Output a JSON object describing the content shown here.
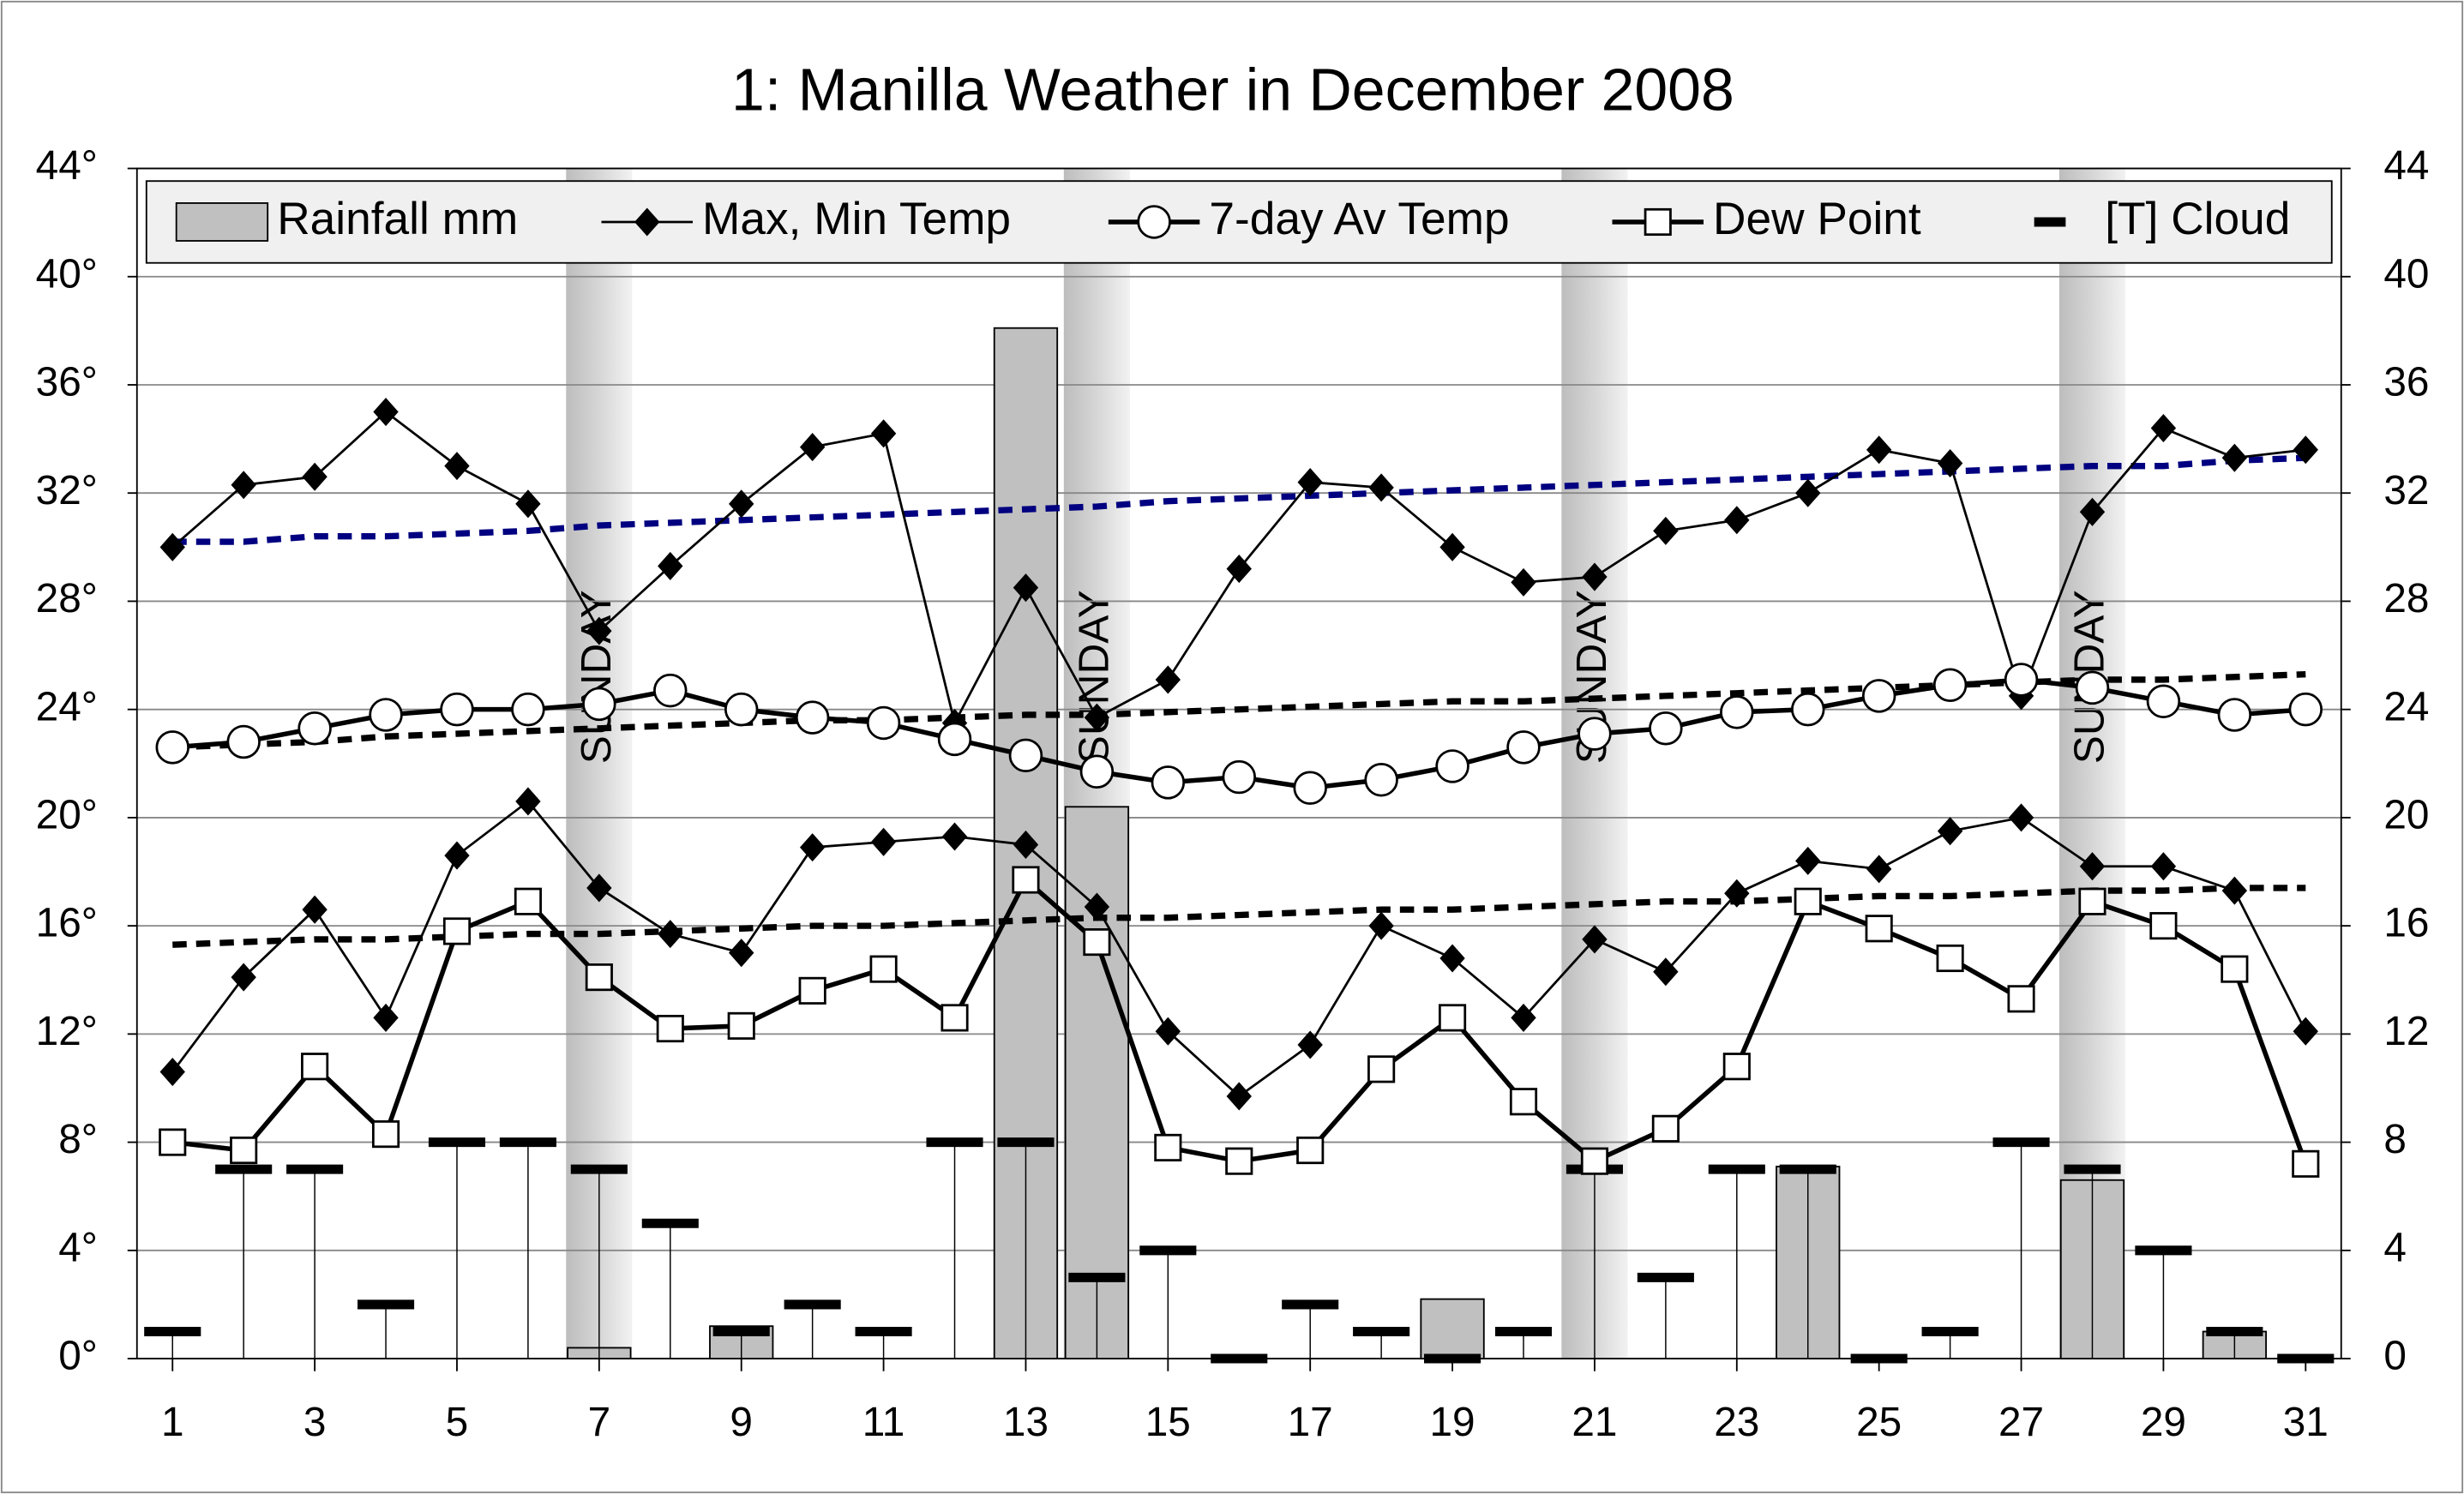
{
  "chart_data": {
    "type": "combo",
    "title": "1: Manilla Weather in December 2008",
    "x": [
      1,
      2,
      3,
      4,
      5,
      6,
      7,
      8,
      9,
      10,
      11,
      12,
      13,
      14,
      15,
      16,
      17,
      18,
      19,
      20,
      21,
      22,
      23,
      24,
      25,
      26,
      27,
      28,
      29,
      30,
      31
    ],
    "xlim": [
      0.5,
      31.5
    ],
    "xticks": [
      1,
      3,
      5,
      7,
      9,
      11,
      13,
      15,
      17,
      19,
      21,
      23,
      25,
      27,
      29,
      31
    ],
    "ylim": [
      0,
      44
    ],
    "yticks": [
      {
        "value": 0,
        "label": "0°"
      },
      {
        "value": 4,
        "label": "4°"
      },
      {
        "value": 8,
        "label": "8°"
      },
      {
        "value": 12,
        "label": "12°"
      },
      {
        "value": 16,
        "label": "16°"
      },
      {
        "value": 20,
        "label": "20°"
      },
      {
        "value": 24,
        "label": "24°"
      },
      {
        "value": 28,
        "label": "28°"
      },
      {
        "value": 32,
        "label": "32°"
      },
      {
        "value": 36,
        "label": "36°"
      },
      {
        "value": 40,
        "label": "40°"
      },
      {
        "value": 44,
        "label": "44°"
      }
    ],
    "y2lim": [
      0,
      44
    ],
    "y2ticks": [
      0,
      4,
      8,
      12,
      16,
      20,
      24,
      28,
      32,
      36,
      40,
      44
    ],
    "grid": true,
    "sundays": [
      7,
      14,
      21,
      28
    ],
    "sunday_label": "SUNDAY",
    "series": [
      {
        "name": "Rainfall mm",
        "kind": "bar",
        "color": "#c0c0c0",
        "values": [
          0,
          0,
          0,
          0,
          0,
          0,
          0.4,
          0,
          1.2,
          0,
          0,
          0,
          38.1,
          20.4,
          0,
          0,
          0,
          0,
          2.2,
          0,
          0,
          0,
          0,
          7.1,
          0,
          0,
          0,
          6.6,
          0,
          1,
          0
        ]
      },
      {
        "name": "Max, Min Temp",
        "kind": "line",
        "marker": "diamond",
        "color": "#000000",
        "values": [
          30,
          32.3,
          32.6,
          35,
          33,
          31.6,
          26.9,
          29.3,
          31.6,
          33.7,
          34.2,
          23.5,
          28.5,
          23.7,
          25.1,
          29.2,
          32.4,
          32.2,
          30,
          28.7,
          28.9,
          30.6,
          31,
          32,
          33.6,
          33.1,
          24.5,
          31.3,
          34.4,
          33.3,
          33.6
        ],
        "min_values": [
          10.6,
          14.1,
          16.6,
          12.6,
          18.6,
          20.6,
          17.4,
          15.7,
          15,
          18.9,
          19.1,
          19.3,
          19,
          16.7,
          12.1,
          9.7,
          11.6,
          16,
          14.8,
          12.6,
          15.5,
          14.3,
          17.2,
          18.4,
          18.1,
          19.5,
          20,
          18.2,
          18.2,
          17.3,
          12.1
        ]
      },
      {
        "name": "7-day Av Temp",
        "kind": "line",
        "marker": "circle",
        "color": "#000000",
        "values": [
          22.6,
          22.8,
          23.3,
          23.8,
          24,
          24,
          24.2,
          24.7,
          24,
          23.7,
          23.5,
          22.9,
          22.3,
          21.7,
          21.3,
          21.5,
          21.1,
          21.4,
          21.9,
          22.6,
          23.1,
          23.3,
          23.9,
          24,
          24.5,
          24.9,
          25.1,
          24.8,
          24.3,
          23.8,
          24
        ]
      },
      {
        "name": "Dew Point",
        "kind": "line",
        "marker": "square",
        "color": "#000000",
        "values": [
          8,
          7.7,
          10.8,
          8.3,
          15.8,
          16.9,
          14.1,
          12.2,
          12.3,
          13.6,
          14.4,
          12.6,
          17.7,
          15.4,
          7.8,
          7.3,
          7.7,
          10.7,
          12.6,
          9.5,
          7.3,
          8.5,
          10.8,
          16.9,
          15.9,
          14.8,
          13.3,
          16.9,
          16,
          14.4,
          7.2
        ]
      },
      {
        "name": "[T] Cloud",
        "kind": "dash",
        "axis": "y2",
        "color": "#000000",
        "values": [
          1,
          7,
          7,
          2,
          8,
          8,
          7,
          5,
          1,
          2,
          1,
          8,
          8,
          3,
          4,
          0,
          2,
          1,
          0,
          1,
          7,
          3,
          7,
          7,
          0,
          1,
          8,
          7,
          4,
          1,
          0
        ]
      },
      {
        "kind": "dotted",
        "color": "#000080",
        "values": [
          30.2,
          30.2,
          30.4,
          30.4,
          30.5,
          30.6,
          30.8,
          30.9,
          31,
          31.1,
          31.2,
          31.3,
          31.4,
          31.5,
          31.7,
          31.8,
          31.9,
          32,
          32.1,
          32.2,
          32.3,
          32.4,
          32.5,
          32.6,
          32.7,
          32.8,
          32.9,
          33,
          33,
          33.2,
          33.3
        ]
      },
      {
        "kind": "dotted",
        "color": "#000000",
        "values": [
          22.6,
          22.7,
          22.8,
          23,
          23.1,
          23.2,
          23.3,
          23.4,
          23.5,
          23.6,
          23.6,
          23.7,
          23.8,
          23.8,
          23.9,
          24,
          24.1,
          24.2,
          24.3,
          24.3,
          24.4,
          24.5,
          24.6,
          24.7,
          24.8,
          24.9,
          25,
          25.1,
          25.1,
          25.2,
          25.3
        ]
      },
      {
        "kind": "dotted",
        "color": "#000000",
        "values": [
          15.3,
          15.4,
          15.5,
          15.5,
          15.6,
          15.7,
          15.7,
          15.8,
          15.9,
          16,
          16,
          16.1,
          16.2,
          16.3,
          16.3,
          16.4,
          16.5,
          16.6,
          16.6,
          16.7,
          16.8,
          16.9,
          16.9,
          17,
          17.1,
          17.1,
          17.2,
          17.3,
          17.3,
          17.4,
          17.4
        ]
      }
    ]
  }
}
